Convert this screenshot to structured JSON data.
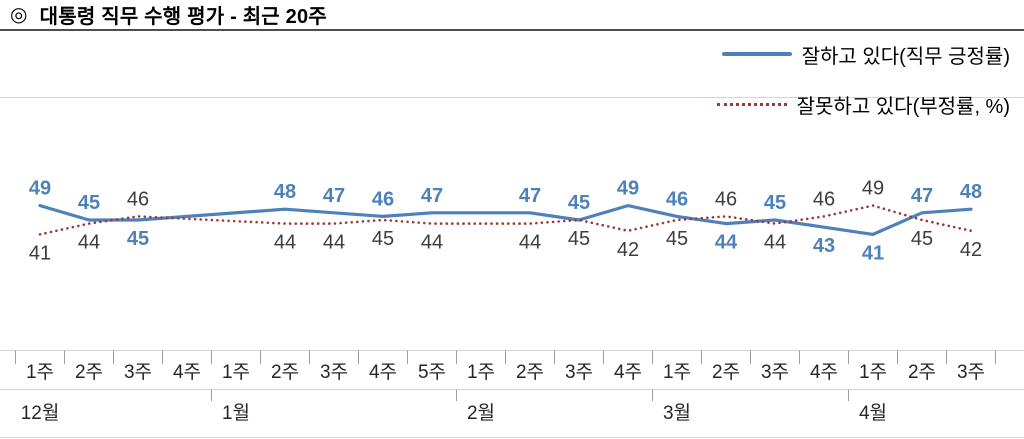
{
  "header": {
    "bullet": "◎",
    "title": "대통령 직무 수행 평가 - 최근 20주"
  },
  "legend": {
    "items": [
      {
        "label": "잘하고 있다(직무 긍정률)",
        "style": "solid",
        "color": "#4e81bb"
      },
      {
        "label": "잘못하고 있다(부정률, %)",
        "style": "dotted",
        "color": "#9c3a36"
      }
    ]
  },
  "chart_data": {
    "type": "line",
    "title": "대통령 직무 수행 평가 - 최근 20주",
    "x_axis": {
      "months": [
        {
          "label": "12월",
          "weeks": [
            "1주",
            "2주",
            "3주",
            "4주"
          ]
        },
        {
          "label": "1월",
          "weeks": [
            "1주",
            "2주",
            "3주",
            "4주",
            "5주"
          ]
        },
        {
          "label": "2월",
          "weeks": [
            "1주",
            "2주",
            "3주",
            "4주"
          ]
        },
        {
          "label": "3월",
          "weeks": [
            "1주",
            "2주",
            "3주",
            "4주"
          ]
        },
        {
          "label": "4월",
          "weeks": [
            "1주",
            "2주",
            "3주"
          ]
        }
      ]
    },
    "categories": [
      "12월 1주",
      "12월 2주",
      "12월 3주",
      "12월 4주",
      "1월 1주",
      "1월 2주",
      "1월 3주",
      "1월 4주",
      "1월 5주",
      "2월 1주",
      "2월 2주",
      "2월 3주",
      "2월 4주",
      "3월 1주",
      "3월 2주",
      "3월 3주",
      "3월 4주",
      "4월 1주",
      "4월 2주",
      "4월 3주"
    ],
    "series": [
      {
        "name": "잘하고 있다(직무 긍정률)",
        "line_style": "solid",
        "color": "#4e81bb",
        "label_color": "#4e81bb",
        "values": [
          49,
          45,
          45,
          null,
          null,
          48,
          47,
          46,
          47,
          null,
          47,
          45,
          49,
          46,
          44,
          45,
          43,
          41,
          47,
          48
        ]
      },
      {
        "name": "잘못하고 있다(부정률, %)",
        "line_style": "dotted",
        "color": "#9c3a36",
        "label_color": "#3d3d3d",
        "values": [
          41,
          44,
          46,
          null,
          null,
          44,
          44,
          45,
          44,
          null,
          44,
          45,
          42,
          45,
          46,
          44,
          46,
          49,
          45,
          42
        ]
      }
    ]
  }
}
